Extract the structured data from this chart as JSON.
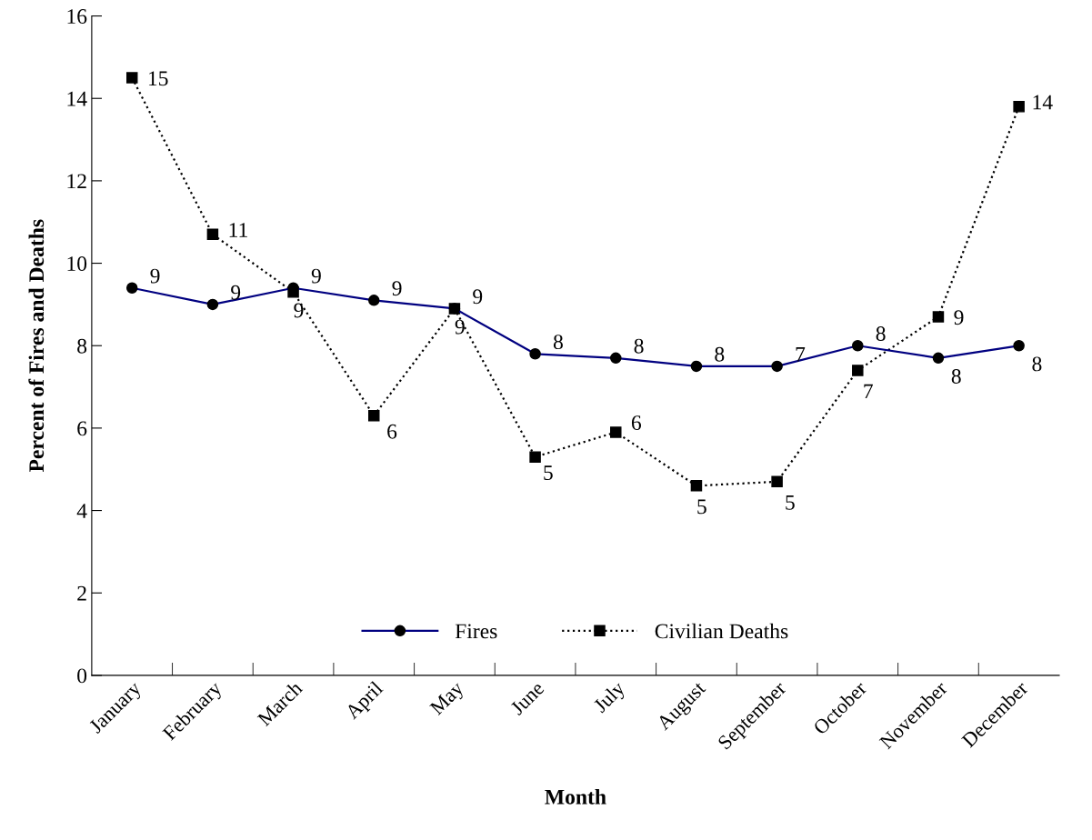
{
  "chart_data": {
    "type": "line",
    "xlabel": "Month",
    "ylabel": "Percent of Fires and Deaths",
    "categories": [
      "January",
      "February",
      "March",
      "April",
      "May",
      "June",
      "July",
      "August",
      "September",
      "October",
      "November",
      "December"
    ],
    "series": [
      {
        "name": "Fires",
        "color": "#000080",
        "marker": "circle",
        "line_style": "solid",
        "values": [
          9.4,
          9.0,
          9.4,
          9.1,
          8.9,
          7.8,
          7.7,
          7.5,
          7.5,
          8.0,
          7.7,
          8.0
        ],
        "value_labels": [
          "9",
          "9",
          "9",
          "9",
          "9",
          "8",
          "8",
          "8",
          "7",
          "8",
          "8",
          "8"
        ]
      },
      {
        "name": "Civilian Deaths",
        "color": "#000000",
        "marker": "square",
        "line_style": "dotted",
        "values": [
          14.5,
          10.7,
          9.3,
          6.3,
          8.9,
          5.3,
          5.9,
          4.6,
          4.7,
          7.4,
          8.7,
          13.8
        ],
        "value_labels": [
          "15",
          "11",
          "9",
          "6",
          "9",
          "5",
          "6",
          "5",
          "5",
          "7",
          "9",
          "14"
        ]
      }
    ],
    "ylim": [
      0,
      16
    ],
    "yticks": [
      0,
      2,
      4,
      6,
      8,
      10,
      12,
      14,
      16
    ],
    "grid": false,
    "legend": "bottom"
  }
}
